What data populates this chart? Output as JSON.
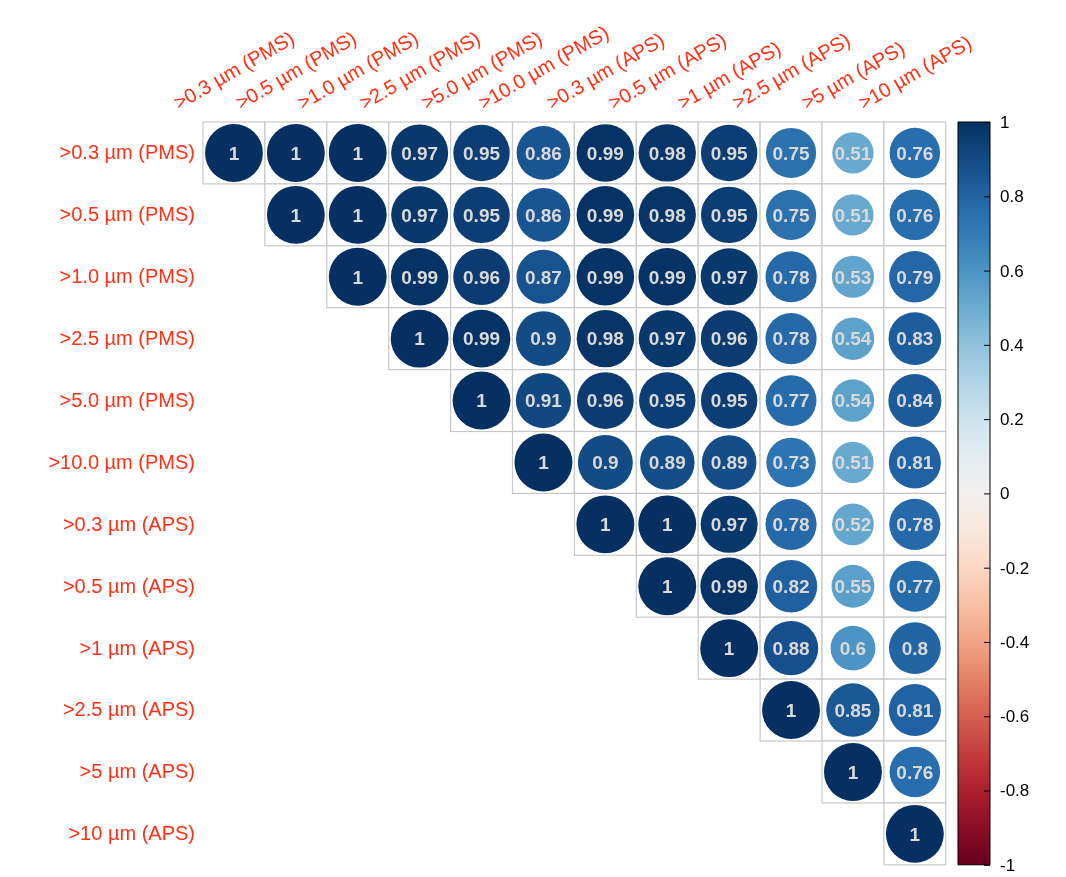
{
  "chart_data": {
    "type": "heatmap",
    "categories": [
      ">0.3 µm (PMS)",
      ">0.5 µm (PMS)",
      ">1.0 µm (PMS)",
      ">2.5 µm (PMS)",
      ">5.0 µm (PMS)",
      ">10.0 µm (PMS)",
      ">0.3 µm (APS)",
      ">0.5 µm (APS)",
      ">1 µm (APS)",
      ">2.5 µm (APS)",
      ">5 µm (APS)",
      ">10 µm (APS)"
    ],
    "y_categories": [
      ">0.3 µm (PMS)",
      ">0.5 µm (PMS)",
      ">1.0 µm (PMS)",
      ">2.5 µm (PMS)",
      ">5.0 µm (PMS)",
      ">10.0 µm (PMS)",
      ">0.3 µm (APS)",
      ">0.5 µm (APS)",
      ">1 µm (APS)",
      ">2.5 µm (APS)",
      ">5 µm (APS)",
      ">10 µm (APS)"
    ],
    "cells": [
      [
        1,
        1,
        1,
        0.97,
        0.95,
        0.86,
        0.99,
        0.98,
        0.95,
        0.75,
        0.51,
        0.76
      ],
      [
        null,
        1,
        1,
        0.97,
        0.95,
        0.86,
        0.99,
        0.98,
        0.95,
        0.75,
        0.51,
        0.76
      ],
      [
        null,
        null,
        1,
        0.99,
        0.96,
        0.87,
        0.99,
        0.99,
        0.97,
        0.78,
        0.53,
        0.79
      ],
      [
        null,
        null,
        null,
        1,
        0.99,
        0.9,
        0.98,
        0.97,
        0.96,
        0.78,
        0.54,
        0.83
      ],
      [
        null,
        null,
        null,
        null,
        1,
        0.91,
        0.96,
        0.95,
        0.95,
        0.77,
        0.54,
        0.84
      ],
      [
        null,
        null,
        null,
        null,
        null,
        1,
        0.9,
        0.89,
        0.89,
        0.73,
        0.51,
        0.81
      ],
      [
        null,
        null,
        null,
        null,
        null,
        null,
        1,
        1,
        0.97,
        0.78,
        0.52,
        0.78
      ],
      [
        null,
        null,
        null,
        null,
        null,
        null,
        null,
        1,
        0.99,
        0.82,
        0.55,
        0.77
      ],
      [
        null,
        null,
        null,
        null,
        null,
        null,
        null,
        null,
        1,
        0.88,
        0.6,
        0.8
      ],
      [
        null,
        null,
        null,
        null,
        null,
        null,
        null,
        null,
        null,
        1,
        0.85,
        0.81
      ],
      [
        null,
        null,
        null,
        null,
        null,
        null,
        null,
        null,
        null,
        null,
        1,
        0.76
      ],
      [
        null,
        null,
        null,
        null,
        null,
        null,
        null,
        null,
        null,
        null,
        null,
        1
      ]
    ],
    "clim": [
      -1,
      1
    ],
    "cticks": [
      1,
      0.8,
      0.6,
      0.4,
      0.2,
      0,
      -0.2,
      -0.4,
      -0.6,
      -0.8,
      -1
    ],
    "data_labels": true
  }
}
